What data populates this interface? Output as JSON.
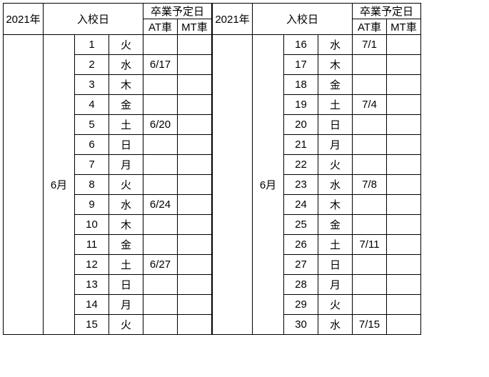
{
  "colors": {
    "background": "#ffffff",
    "border": "#000000",
    "text": "#000000"
  },
  "header": {
    "year": "2021年",
    "entry": "入校日",
    "grad": "卒業予定日",
    "at": "AT車",
    "mt": "MT車"
  },
  "left": {
    "month": "6月",
    "rows": [
      {
        "day": "1",
        "wday": "火",
        "at": "",
        "mt": ""
      },
      {
        "day": "2",
        "wday": "水",
        "at": "6/17",
        "mt": ""
      },
      {
        "day": "3",
        "wday": "木",
        "at": "",
        "mt": ""
      },
      {
        "day": "4",
        "wday": "金",
        "at": "",
        "mt": ""
      },
      {
        "day": "5",
        "wday": "土",
        "at": "6/20",
        "mt": ""
      },
      {
        "day": "6",
        "wday": "日",
        "at": "",
        "mt": ""
      },
      {
        "day": "7",
        "wday": "月",
        "at": "",
        "mt": ""
      },
      {
        "day": "8",
        "wday": "火",
        "at": "",
        "mt": ""
      },
      {
        "day": "9",
        "wday": "水",
        "at": "6/24",
        "mt": ""
      },
      {
        "day": "10",
        "wday": "木",
        "at": "",
        "mt": ""
      },
      {
        "day": "11",
        "wday": "金",
        "at": "",
        "mt": ""
      },
      {
        "day": "12",
        "wday": "土",
        "at": "6/27",
        "mt": ""
      },
      {
        "day": "13",
        "wday": "日",
        "at": "",
        "mt": ""
      },
      {
        "day": "14",
        "wday": "月",
        "at": "",
        "mt": ""
      },
      {
        "day": "15",
        "wday": "火",
        "at": "",
        "mt": ""
      }
    ]
  },
  "right": {
    "month": "6月",
    "rows": [
      {
        "day": "16",
        "wday": "水",
        "at": "7/1",
        "mt": ""
      },
      {
        "day": "17",
        "wday": "木",
        "at": "",
        "mt": ""
      },
      {
        "day": "18",
        "wday": "金",
        "at": "",
        "mt": ""
      },
      {
        "day": "19",
        "wday": "土",
        "at": "7/4",
        "mt": ""
      },
      {
        "day": "20",
        "wday": "日",
        "at": "",
        "mt": ""
      },
      {
        "day": "21",
        "wday": "月",
        "at": "",
        "mt": ""
      },
      {
        "day": "22",
        "wday": "火",
        "at": "",
        "mt": ""
      },
      {
        "day": "23",
        "wday": "水",
        "at": "7/8",
        "mt": ""
      },
      {
        "day": "24",
        "wday": "木",
        "at": "",
        "mt": ""
      },
      {
        "day": "25",
        "wday": "金",
        "at": "",
        "mt": ""
      },
      {
        "day": "26",
        "wday": "土",
        "at": "7/11",
        "mt": ""
      },
      {
        "day": "27",
        "wday": "日",
        "at": "",
        "mt": ""
      },
      {
        "day": "28",
        "wday": "月",
        "at": "",
        "mt": ""
      },
      {
        "day": "29",
        "wday": "火",
        "at": "",
        "mt": ""
      },
      {
        "day": "30",
        "wday": "水",
        "at": "7/15",
        "mt": ""
      }
    ]
  }
}
